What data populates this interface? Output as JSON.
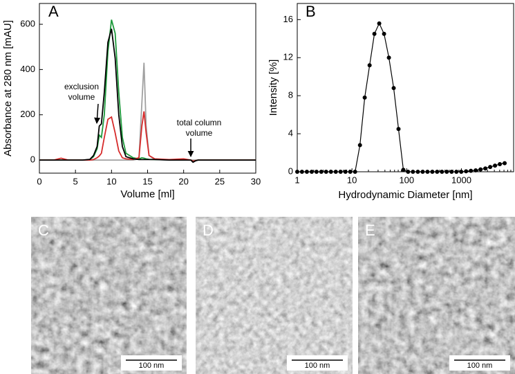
{
  "chart_data": [
    {
      "type": "line",
      "title": "A",
      "x_label": "Volume [ml]",
      "y_label": "Absorbance at 280 nm [mAU]",
      "xlim": [
        0,
        30
      ],
      "xticks": [
        0,
        5,
        10,
        15,
        20,
        25,
        30
      ],
      "ylim": [
        -58,
        692
      ],
      "yticks": [
        0,
        200,
        400,
        600
      ],
      "annotations": [
        [
          "exclusion",
          "volume"
        ],
        [
          "total column",
          "volume"
        ]
      ],
      "x": [
        0,
        2,
        3,
        4,
        6,
        7,
        7.5,
        8,
        8.3,
        8.6,
        9,
        9.5,
        10,
        10.5,
        11,
        11.5,
        12,
        13,
        13.8,
        14.2,
        14.5,
        14.8,
        15.2,
        16,
        18,
        20,
        21,
        21.3,
        21.7,
        22,
        24,
        30
      ],
      "series": [
        {
          "color": "#a0a0a0",
          "values": [
            0,
            0,
            0,
            0,
            0,
            0,
            0,
            0,
            0,
            0,
            0,
            0,
            0,
            0,
            0,
            0,
            0,
            0,
            5,
            250,
            430,
            150,
            20,
            2,
            0,
            0,
            0,
            0,
            0,
            0,
            0,
            0
          ]
        },
        {
          "color": "#1e9a3c",
          "values": [
            0,
            0,
            0,
            0,
            0,
            2,
            15,
            50,
            110,
            100,
            200,
            480,
            620,
            560,
            300,
            100,
            30,
            10,
            5,
            10,
            8,
            5,
            3,
            2,
            2,
            2,
            0,
            -5,
            -2,
            0,
            0,
            0
          ]
        },
        {
          "color": "#d62a2a",
          "values": [
            0,
            0,
            8,
            0,
            0,
            0,
            2,
            10,
            18,
            30,
            100,
            180,
            190,
            120,
            40,
            10,
            5,
            3,
            10,
            150,
            215,
            120,
            20,
            5,
            2,
            5,
            0,
            -5,
            -2,
            0,
            0,
            0
          ]
        },
        {
          "color": "#000000",
          "values": [
            0,
            0,
            0,
            0,
            0,
            3,
            20,
            60,
            150,
            160,
            300,
            520,
            580,
            450,
            200,
            60,
            15,
            5,
            2,
            2,
            2,
            2,
            2,
            2,
            0,
            0,
            0,
            -10,
            -3,
            0,
            0,
            0
          ]
        }
      ]
    },
    {
      "type": "line",
      "title": "B",
      "x_label": "Hydrodynamic Diameter [nm]",
      "y_label": "Intensity [%]",
      "log_x": true,
      "markers": true,
      "xlim": [
        1,
        9000
      ],
      "xticks": [
        1,
        10,
        100,
        1000
      ],
      "ylim": [
        0,
        17.7
      ],
      "yticks": [
        0,
        4,
        8,
        12,
        16
      ],
      "x": [
        1,
        1.22,
        1.5,
        1.84,
        2.25,
        2.75,
        3.37,
        4.13,
        5.06,
        6.2,
        7.6,
        9.3,
        11.4,
        14,
        17.1,
        21,
        25.7,
        31.5,
        38.6,
        47.3,
        57.9,
        70.9,
        86.9,
        106,
        130,
        160,
        196,
        240,
        294,
        360,
        441,
        540,
        662,
        811,
        993,
        1217,
        1490,
        1826,
        2237,
        2740,
        3356,
        4112,
        5037,
        6170
      ],
      "series": [
        {
          "color": "#000000",
          "values": [
            0,
            0,
            0,
            0,
            0,
            0,
            0,
            0,
            0,
            0,
            0,
            0,
            0,
            2.8,
            7.8,
            11.2,
            14.5,
            15.6,
            14.5,
            12,
            8.8,
            4.5,
            0.2,
            0,
            0,
            0,
            0,
            0,
            0,
            0,
            0,
            0,
            0,
            0,
            0,
            0.05,
            0.1,
            0.15,
            0.25,
            0.35,
            0.5,
            0.65,
            0.8,
            0.9
          ]
        }
      ]
    }
  ],
  "panels": [
    {
      "label": "C",
      "scale_bar": "100 nm"
    },
    {
      "label": "D",
      "scale_bar": "100 nm"
    },
    {
      "label": "E",
      "scale_bar": "100 nm"
    }
  ]
}
